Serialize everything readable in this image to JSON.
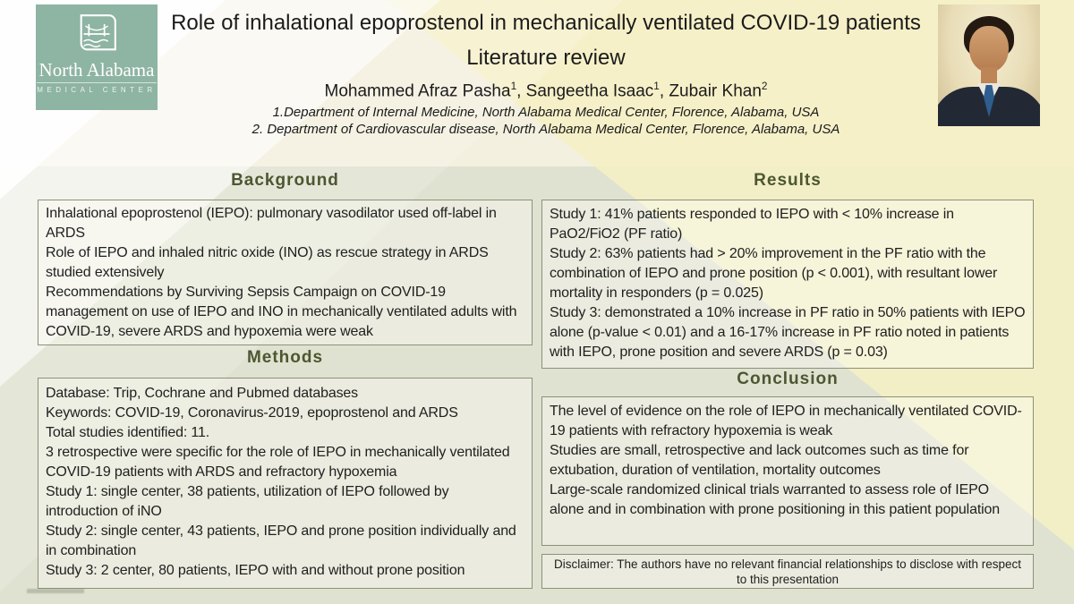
{
  "header": {
    "title": "Role of inhalational epoprostenol in mechanically ventilated COVID-19 patients",
    "subtitle": "Literature review",
    "authors": [
      {
        "name": "Mohammed Afraz Pasha",
        "sup": "1"
      },
      {
        "name": "Sangeetha Isaac",
        "sup": "1"
      },
      {
        "name": "Zubair Khan",
        "sup": "2"
      }
    ],
    "author_separator": ", ",
    "affiliations": [
      "1.Department of Internal Medicine, North Alabama Medical Center, Florence, Alabama, USA",
      "2. Department of Cardiovascular disease, North Alabama Medical Center, Florence, Alabama, USA"
    ]
  },
  "logo": {
    "org_name": "North Alabama",
    "org_subtitle": "MEDICAL CENTER",
    "icon": "bridge-emblem-icon",
    "bg_color": "#8eb4a3"
  },
  "sections": [
    {
      "id": "background",
      "heading": "Background",
      "lines": [
        "Inhalational epoprostenol (IEPO): pulmonary vasodilator used off-label in ARDS",
        "Role of IEPO and inhaled nitric oxide (INO) as rescue strategy in ARDS studied extensively",
        "Recommendations by Surviving Sepsis Campaign on COVID-19 management on use of IEPO and INO in mechanically ventilated adults with COVID-19, severe ARDS and hypoxemia were weak"
      ]
    },
    {
      "id": "methods",
      "heading": "Methods",
      "lines": [
        "Database: Trip, Cochrane and Pubmed databases",
        "Keywords: COVID-19, Coronavirus-2019, epoprostenol and ARDS",
        "Total studies identified: 11.",
        "3 retrospective were specific for the role of IEPO in mechanically ventilated COVID-19 patients with ARDS and refractory hypoxemia",
        "Study 1: single center, 38 patients, utilization of IEPO followed by introduction of iNO",
        "Study 2: single center, 43 patients, IEPO and prone position individually and in combination",
        "Study 3: 2 center, 80 patients, IEPO with and without prone position"
      ]
    },
    {
      "id": "results",
      "heading": "Results",
      "lines": [
        "Study 1: 41% patients responded to IEPO with < 10% increase in PaO2/FiO2 (PF ratio)",
        "Study 2: 63% patients had > 20% improvement in the PF ratio with the combination of IEPO and prone position (p < 0.001), with resultant lower mortality in responders (p = 0.025)",
        "Study 3: demonstrated a 10% increase in PF ratio in 50% patients with IEPO alone (p-value < 0.01) and a 16-17% increase in PF ratio noted in patients with IEPO, prone position and severe ARDS (p = 0.03)"
      ]
    },
    {
      "id": "conclusion",
      "heading": "Conclusion",
      "lines": [
        "The level of evidence on the role of IEPO in mechanically ventilated COVID-19 patients with refractory hypoxemia is weak",
        "Studies are small, retrospective and lack outcomes such as time for extubation, duration of ventilation, mortality outcomes",
        "Large-scale randomized clinical trials warranted to assess role of IEPO alone and in combination with prone positioning in this patient population"
      ]
    }
  ],
  "disclaimer": "Disclaimer: The authors have no relevant financial relationships to disclose with respect to this presentation",
  "colors": {
    "sage_bg": "#dfe2d0",
    "cream_band": "#f3f0df",
    "yellow_band": "#f6f0c4",
    "heading_text": "#4c5731",
    "box_border": "#8d9178",
    "logo_green": "#8eb4a3"
  }
}
